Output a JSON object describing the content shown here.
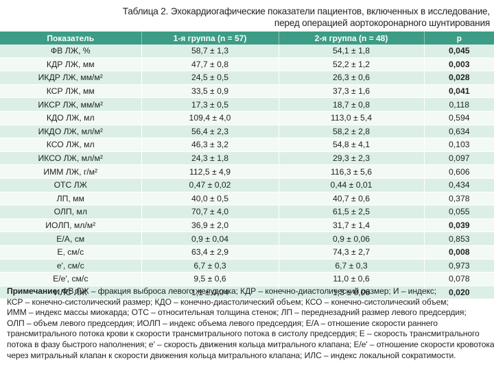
{
  "caption": {
    "line1": "Таблица 2. Эхокардиогафические показатели пациентов, включенных в исследование,",
    "line2": "перед операцией аортокоронарного шунтирования"
  },
  "table": {
    "headers": [
      "Показатель",
      "1-я группа (n = 57)",
      "2-я группа (n = 48)",
      "p"
    ],
    "rows": [
      {
        "param": "ФВ ЛЖ, %",
        "g1": "58,7 ± 1,3",
        "g2": "54,1 ± 1,8",
        "p": "0,045",
        "significant": true
      },
      {
        "param": "КДР ЛЖ, мм",
        "g1": "47,7 ± 0,8",
        "g2": "52,2 ± 1,2",
        "p": "0,003",
        "significant": true
      },
      {
        "param": "ИКДР ЛЖ, мм/м²",
        "g1": "24,5 ± 0,5",
        "g2": "26,3 ± 0,6",
        "p": "0,028",
        "significant": true
      },
      {
        "param": "КСР ЛЖ, мм",
        "g1": "33,5 ± 0,9",
        "g2": "37,3 ± 1,6",
        "p": "0,041",
        "significant": true
      },
      {
        "param": "ИКСР ЛЖ, мм/м²",
        "g1": "17,3 ± 0,5",
        "g2": "18,7 ± 0,8",
        "p": "0,118",
        "significant": false
      },
      {
        "param": "КДО ЛЖ, мл",
        "g1": "109,4 ± 4,0",
        "g2": "113,0 ± 5,4",
        "p": "0,594",
        "significant": false
      },
      {
        "param": "ИКДО ЛЖ, мл/м²",
        "g1": "56,4 ± 2,3",
        "g2": "58,2 ± 2,8",
        "p": "0,634",
        "significant": false
      },
      {
        "param": "КСО ЛЖ, мл",
        "g1": "46,3 ± 3,2",
        "g2": "54,8 ± 4,1",
        "p": "0,103",
        "significant": false
      },
      {
        "param": "ИКСО ЛЖ, мл/м²",
        "g1": "24,3 ± 1,8",
        "g2": "29,3 ± 2,3",
        "p": "0,097",
        "significant": false
      },
      {
        "param": "ИММ ЛЖ, г/м²",
        "g1": "112,5 ± 4,9",
        "g2": "116,3 ± 5,6",
        "p": "0,606",
        "significant": false
      },
      {
        "param": "ОТС ЛЖ",
        "g1": "0,47 ± 0,02",
        "g2": "0,44 ± 0,01",
        "p": "0,434",
        "significant": false
      },
      {
        "param": "ЛП, мм",
        "g1": "40,0 ± 0,5",
        "g2": "40,7 ± 0,6",
        "p": "0,378",
        "significant": false
      },
      {
        "param": "ОЛП, мл",
        "g1": "70,7 ± 4,0",
        "g2": "61,5 ± 2,5",
        "p": "0,055",
        "significant": false
      },
      {
        "param": "ИОЛП, мл/м²",
        "g1": "36,9 ± 2,0",
        "g2": "31,7 ± 1,4",
        "p": "0,039",
        "significant": true
      },
      {
        "param": "E/A, см",
        "g1": "0,9 ± 0,04",
        "g2": "0,9 ± 0,06",
        "p": "0,853",
        "significant": false
      },
      {
        "param": "E, см/с",
        "g1": "63,4 ± 2,9",
        "g2": "74,3 ± 2,7",
        "p": "0,008",
        "significant": true
      },
      {
        "param": "e', см/с",
        "g1": "6,7 ± 0,3",
        "g2": "6,7 ± 0,3",
        "p": "0,973",
        "significant": false
      },
      {
        "param": "E/e', см/с",
        "g1": "9,5 ± 0,6",
        "g2": "11,0 ± 0,6",
        "p": "0,078",
        "significant": false
      },
      {
        "param": "ИЛС ЛЖ",
        "g1": "1,1 ± 0,04",
        "g2": "1,3 ± 0,06",
        "p": "0,020",
        "significant": true
      }
    ]
  },
  "note": {
    "label": "Примечание:",
    "lines": [
      " ФВ ЛЖ – фракция выброса левого желудочка; КДР – конечно-диастолический размер; И – индекс;",
      "КСР – конечно-систолический размер; КДО – конечно-диастолический объем; КСО – конечно-систолический объем;",
      "ИММ – индекс массы миокарда; ОТС – относительная толщина стенок; ЛП – переднезадний размер левого предсердия;",
      "ОЛП – объем левого предсердия; ИОЛП – индекс объема левого предсердия; E/A – отношение скорости раннего",
      "трансмитрального потока крови к скорости трансмитрального потока в систолу предсердия; E – скорость трансмитрального",
      "потока в фазу быстрого наполнения; e' – скорость движения кольца митрального клапана; E/e' – отношение скорости кровотока",
      "через митральный клапан к скорости движения кольца митрального клапана; ИЛС – индекс локальной сократимости."
    ]
  },
  "colors": {
    "header_bg": "#3c9c86",
    "row_odd": "#dcefe7",
    "row_even": "#f3f9f5"
  }
}
